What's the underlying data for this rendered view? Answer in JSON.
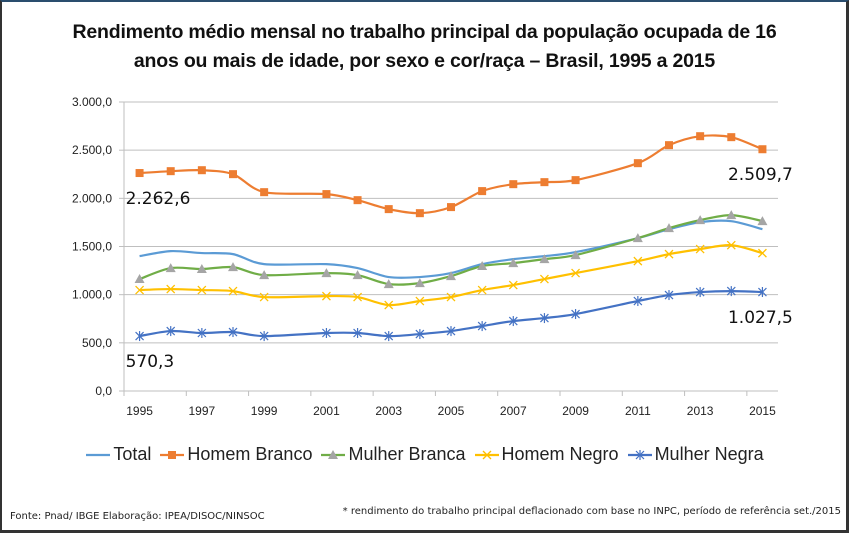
{
  "chart_data": {
    "type": "line",
    "title": "Rendimento médio mensal no trabalho principal da população ocupada de 16 anos ou mais de idade, por sexo e cor/raça – Brasil, 1995 a 2015",
    "title_lines": [
      "Rendimento médio mensal no trabalho principal da população ocupada de 16",
      "anos ou mais de idade, por sexo e cor/raça – Brasil, 1995 a 2015"
    ],
    "xlabel": "",
    "ylabel": "",
    "categories": [
      "1995",
      "1996",
      "1997",
      "1998",
      "1999",
      "2000",
      "2001",
      "2002",
      "2003",
      "2004",
      "2005",
      "2006",
      "2007",
      "2008",
      "2009",
      "2010",
      "2011",
      "2012",
      "2013",
      "2014",
      "2015"
    ],
    "x_tick_labels": [
      "1995",
      "1997",
      "1999",
      "2001",
      "2003",
      "2005",
      "2007",
      "2009",
      "2011",
      "2013",
      "2015"
    ],
    "ylim": [
      0,
      3000
    ],
    "y_ticks": [
      0,
      500,
      1000,
      1500,
      2000,
      2500,
      3000
    ],
    "y_tick_labels": [
      "0,0",
      "500,0",
      "1.000,0",
      "1.500,0",
      "2.000,0",
      "2.500,0",
      "3.000,0"
    ],
    "grid": "horizontal",
    "legend_position": "bottom",
    "series": [
      {
        "name": "Total",
        "color": "#5B9BD5",
        "marker": "none",
        "marker_color": "#5B9BD5",
        "values": [
          1400,
          1452,
          1432,
          1421,
          1317,
          null,
          1317,
          1276,
          1183,
          1183,
          1224,
          1317,
          1369,
          1400,
          1442,
          null,
          1587,
          1680,
          1753,
          1763,
          1680
        ]
      },
      {
        "name": "Homem Branco",
        "color": "#ED7D31",
        "marker": "square",
        "marker_color": "#ED7D31",
        "values": [
          2262.6,
          2282,
          2292,
          2251,
          2064,
          null,
          2044,
          1981,
          1888,
          1846,
          1909,
          2075,
          2147,
          2168,
          2189,
          null,
          2365,
          2552,
          2645,
          2635,
          2509.7
        ]
      },
      {
        "name": "Mulher Branca",
        "color": "#70AD47",
        "marker": "triangle",
        "marker_color": "#A5A5A5",
        "values": [
          1162,
          1276,
          1266,
          1286,
          1203,
          null,
          1224,
          1203,
          1110,
          1120,
          1193,
          1297,
          1328,
          1369,
          1411,
          null,
          1587,
          1691,
          1774,
          1826,
          1764
        ]
      },
      {
        "name": "Homem Negro",
        "color": "#FFC000",
        "marker": "x",
        "marker_color": "#FFC000",
        "values": [
          1048,
          1058,
          1048,
          1037,
          975,
          null,
          985,
          975,
          892,
          934,
          975,
          1048,
          1100,
          1162,
          1224,
          null,
          1348,
          1421,
          1473,
          1514,
          1431
        ]
      },
      {
        "name": "Mulher Negra",
        "color": "#4472C4",
        "marker": "star",
        "marker_color": "#4472C4",
        "values": [
          570.3,
          622,
          602,
          612,
          570,
          null,
          602,
          602,
          570,
          591,
          622,
          674,
          726,
          757,
          799,
          null,
          934,
          996,
          1027,
          1037,
          1027.5
        ]
      }
    ],
    "annotations": [
      {
        "text": "2.262,6",
        "series": "Homem Branco",
        "x": "1995",
        "placement": "below"
      },
      {
        "text": "2.509,7",
        "series": "Homem Branco",
        "x": "2015",
        "placement": "below"
      },
      {
        "text": "570,3",
        "series": "Mulher Negra",
        "x": "1995",
        "placement": "below"
      },
      {
        "text": "1.027,5",
        "series": "Mulher Negra",
        "x": "2015",
        "placement": "below"
      }
    ]
  },
  "footer": {
    "source": "Fonte: Pnad/ IBGE Elaboração: IPEA/DISOC/NINSOC",
    "note": "* rendimento do trabalho principal deflacionado com base no INPC, período de referência set./2015"
  }
}
